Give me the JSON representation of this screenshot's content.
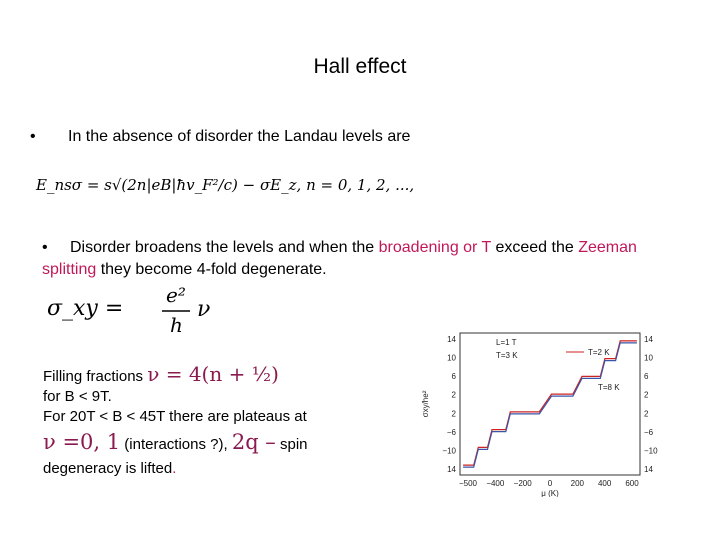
{
  "title": "Hall effect",
  "bullet1": {
    "marker": "•",
    "text": "In the absence of disorder the Landau levels are"
  },
  "formula1": "E_nsσ = s√(2n|eB|ħv_F²/c) − σE_z, n = 0, 1, 2, ...,",
  "bullet2": {
    "marker": "•",
    "text_a": "Disorder broadens the levels and when the ",
    "highlight_a": "broadening or T",
    "text_b": " exceed the ",
    "highlight_b": "Zeeman splitting",
    "text_c": " they become 4-fold degenerate."
  },
  "formula2": {
    "lhs": "σ_xy =",
    "numerator": "e²",
    "denominator": "h",
    "factor": "ν"
  },
  "filling": {
    "label": "Filling fractions ",
    "nu_expr": "ν = 4(n + ½)",
    "range_line": "for B < 9T.",
    "plateaus_line": "For 20T < B < 45T there are plateaus at",
    "nu_values": "ν =0, 1",
    "interactions": " (interactions ?), ",
    "spin_expr": "2q –",
    "spin_text": " spin",
    "end_text_a": "degeneracy is lifted",
    "end_text_b": "."
  },
  "chart_data": {
    "type": "line",
    "xlabel": "μ (K)",
    "ylabel": "σxy/he²",
    "x_ticks": [
      "−500",
      "−400",
      "−200",
      "0",
      "200",
      "400",
      "600"
    ],
    "y_ticks_left": [
      "14",
      "10",
      "6",
      "2",
      "2",
      "−6",
      "−10",
      "14"
    ],
    "y_ticks_right": [
      "14",
      "10",
      "6",
      "2",
      "2",
      "−6",
      "−10",
      "14"
    ],
    "legend": [
      "L=1 T",
      "T=3 K",
      "T=2 K",
      "T=8 K"
    ],
    "series": [
      {
        "name": "T=2 K",
        "color": "#cc2222",
        "x": [
          -540,
          -470,
          -440,
          -380,
          -350,
          -260,
          -230,
          -180,
          -140,
          -40,
          40,
          140,
          180,
          240,
          270,
          360,
          390,
          460,
          490,
          560,
          600
        ],
        "y": [
          -14,
          -14,
          -10,
          -10,
          -6,
          -6,
          -2,
          -2,
          -2,
          -2,
          2,
          2,
          2,
          6,
          6,
          6,
          10,
          10,
          14,
          14,
          14
        ]
      },
      {
        "name": "T=8 K",
        "color": "#3a55a8",
        "x": [
          -540,
          -470,
          -440,
          -380,
          -350,
          -260,
          -230,
          -180,
          -140,
          -40,
          40,
          140,
          180,
          240,
          270,
          360,
          390,
          460,
          490,
          560,
          600
        ],
        "y": [
          -14,
          -14,
          -10,
          -10,
          -6,
          -6,
          -2,
          -2,
          -2,
          -2,
          2,
          2,
          2,
          6,
          6,
          6,
          10,
          10,
          14,
          14,
          14
        ]
      }
    ],
    "xlim": [
      -560,
      620
    ],
    "ylim": [
      -16,
      16
    ]
  }
}
